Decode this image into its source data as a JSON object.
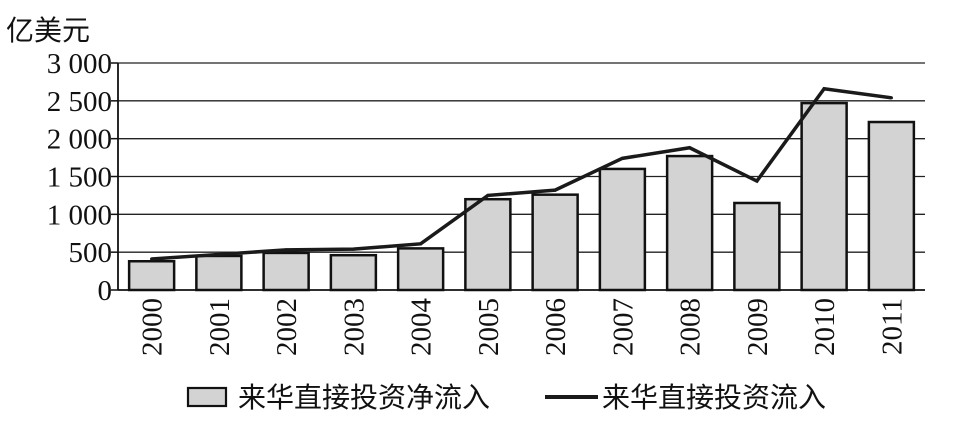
{
  "chart_data": {
    "type": "bar",
    "unit_label": "亿美元",
    "categories": [
      "2000",
      "2001",
      "2002",
      "2003",
      "2004",
      "2005",
      "2006",
      "2007",
      "2008",
      "2009",
      "2010",
      "2011"
    ],
    "series": [
      {
        "name": "来华直接投资净流入",
        "type": "bar",
        "color": "#d3d3d3",
        "values": [
          380,
          450,
          490,
          460,
          550,
          1200,
          1260,
          1600,
          1770,
          1150,
          2470,
          2220
        ]
      },
      {
        "name": "来华直接投资流入",
        "type": "line",
        "color": "#1a1a1a",
        "values": [
          410,
          470,
          530,
          540,
          610,
          1250,
          1320,
          1740,
          1880,
          1440,
          2660,
          2540
        ]
      }
    ],
    "y_ticks": [
      0,
      500,
      1000,
      1500,
      2000,
      2500,
      3000
    ],
    "y_tick_labels": [
      "0",
      "500",
      "1 000",
      "1 500",
      "2 000",
      "2 500",
      "3 000"
    ],
    "ylim": [
      0,
      3000
    ],
    "grid": "horizontal",
    "legend_position": "bottom"
  }
}
